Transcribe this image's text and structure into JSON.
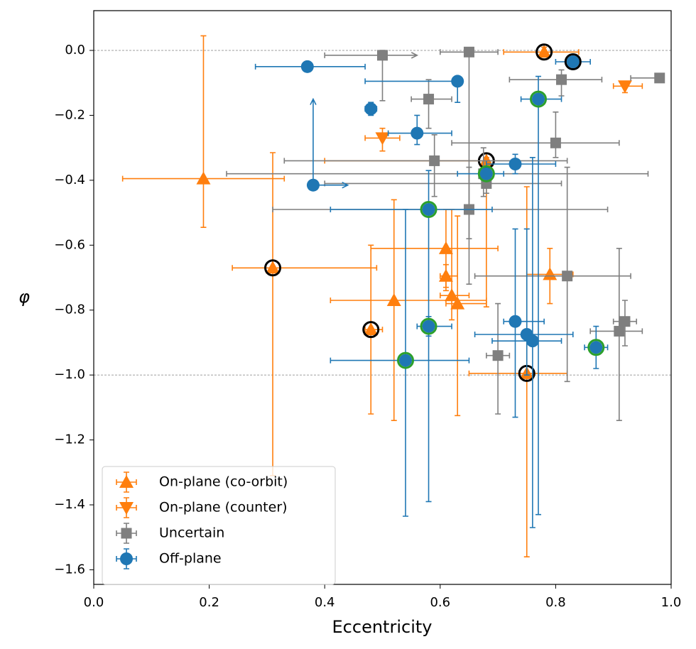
{
  "chart_data": {
    "type": "errorbar_scatter",
    "xlabel": "Eccentricity",
    "ylabel": "φ",
    "xlim": [
      0,
      1
    ],
    "ylim": [
      -1.645,
      0.1225
    ],
    "xticks": [
      {
        "value": 0,
        "label": "0.0"
      },
      {
        "value": 0.2,
        "label": "0.2"
      },
      {
        "value": 0.4,
        "label": "0.4"
      },
      {
        "value": 0.6,
        "label": "0.6"
      },
      {
        "value": 0.8,
        "label": "0.8"
      },
      {
        "value": 1,
        "label": "1.0"
      }
    ],
    "yticks": [
      {
        "value": 0,
        "label": "0.0"
      },
      {
        "value": -0.2,
        "label": "−0.2"
      },
      {
        "value": -0.4,
        "label": "−0.4"
      },
      {
        "value": -0.6,
        "label": "−0.6"
      },
      {
        "value": -0.8,
        "label": "−0.8"
      },
      {
        "value": -1,
        "label": "−1.0"
      },
      {
        "value": -1.2,
        "label": "−1.2"
      },
      {
        "value": -1.4,
        "label": "−1.4"
      },
      {
        "value": -1.6,
        "label": "−1.6"
      }
    ],
    "hlines": [
      0,
      -1
    ],
    "legend": "lower left",
    "series": [
      {
        "name": "On-plane (co-orbit)",
        "color": "#ff7f0e",
        "marker": "triangle-up",
        "x": [
          0.19,
          0.78,
          0.68,
          0.31,
          0.48,
          0.75,
          0.52,
          0.61,
          0.61,
          0.62,
          0.63,
          0.79
        ],
        "values": [
          -0.395,
          -0.005,
          -0.34,
          -0.67,
          -0.86,
          -0.995,
          -0.77,
          -0.61,
          -0.695,
          -0.755,
          -0.78,
          -0.69
        ],
        "x_low": [
          0.05,
          0.71,
          0.4,
          0.24,
          0.47,
          0.65,
          0.41,
          0.48,
          0.6,
          0.6,
          0.61,
          0.75
        ],
        "x_high": [
          0.33,
          0.84,
          0.68,
          0.49,
          0.5,
          0.82,
          0.68,
          0.7,
          0.63,
          0.65,
          0.68,
          0.83
        ],
        "y_high": [
          0.045,
          0.01,
          -0.33,
          -0.315,
          -0.6,
          -0.42,
          -0.46,
          -0.49,
          -0.66,
          -0.49,
          -0.51,
          -0.61
        ],
        "y_low": [
          -0.545,
          -0.02,
          -0.79,
          -1.31,
          -1.12,
          -1.56,
          -1.14,
          -0.74,
          -0.73,
          -0.83,
          -1.125,
          -0.78
        ],
        "edge_colors": [
          null,
          "#000000",
          "#000000",
          "#000000",
          "#000000",
          "#000000",
          null,
          null,
          null,
          null,
          null,
          null
        ],
        "x_arrow": [
          false,
          false,
          false,
          false,
          false,
          false,
          false,
          false,
          false,
          false,
          false,
          false
        ],
        "y_arrow": [
          false,
          false,
          false,
          false,
          false,
          false,
          false,
          false,
          false,
          false,
          false,
          false
        ]
      },
      {
        "name": "On-plane (counter)",
        "color": "#ff7f0e",
        "marker": "triangle-down",
        "x": [
          0.5,
          0.92
        ],
        "values": [
          -0.27,
          -0.11
        ],
        "x_low": [
          0.47,
          0.9
        ],
        "x_high": [
          0.53,
          0.95
        ],
        "y_high": [
          -0.24,
          -0.1
        ],
        "y_low": [
          -0.31,
          -0.13
        ],
        "edge_colors": [
          null,
          null
        ],
        "x_arrow": [
          false,
          false
        ],
        "y_arrow": [
          false,
          false
        ]
      },
      {
        "name": "Uncertain",
        "color": "#7f7f7f",
        "marker": "square",
        "x": [
          0.5,
          0.65,
          0.81,
          0.98,
          0.58,
          0.8,
          0.59,
          0.675,
          0.68,
          0.65,
          0.82,
          0.7,
          0.91,
          0.92
        ],
        "values": [
          -0.015,
          -0.005,
          -0.09,
          -0.085,
          -0.15,
          -0.285,
          -0.34,
          -0.38,
          -0.41,
          -0.49,
          -0.695,
          -0.94,
          -0.865,
          -0.835
        ],
        "x_low": [
          0.4,
          0.6,
          0.72,
          0.93,
          0.55,
          0.62,
          0.33,
          0.23,
          0.4,
          0.31,
          0.66,
          0.68,
          0.86,
          0.9
        ],
        "x_high": [
          0.56,
          0.7,
          0.88,
          0.98,
          0.62,
          0.91,
          0.82,
          0.96,
          0.81,
          0.89,
          0.93,
          0.72,
          0.95,
          0.94
        ],
        "y_high": [
          0.0,
          0.0,
          -0.06,
          -0.08,
          -0.09,
          -0.19,
          -0.26,
          -0.3,
          -0.37,
          -0.36,
          -0.36,
          -0.78,
          -0.61,
          -0.77
        ],
        "y_low": [
          -0.155,
          -0.72,
          -0.14,
          -0.09,
          -0.24,
          -0.33,
          -0.45,
          -0.45,
          -0.44,
          -0.58,
          -1.02,
          -1.12,
          -1.14,
          -0.91
        ],
        "edge_colors": [
          null,
          null,
          null,
          null,
          null,
          null,
          null,
          null,
          null,
          null,
          null,
          null,
          null,
          null
        ],
        "x_arrow": [
          true,
          false,
          false,
          false,
          false,
          false,
          false,
          false,
          false,
          false,
          false,
          false,
          false,
          false
        ],
        "y_arrow": [
          false,
          false,
          false,
          false,
          false,
          false,
          false,
          false,
          false,
          false,
          false,
          false,
          false,
          false
        ]
      },
      {
        "name": "Off-plane",
        "color": "#1f77b4",
        "marker": "circle",
        "x": [
          0.37,
          0.63,
          0.83,
          0.77,
          0.48,
          0.56,
          0.38,
          0.73,
          0.68,
          0.58,
          0.73,
          0.58,
          0.54,
          0.75,
          0.76,
          0.87
        ],
        "values": [
          -0.05,
          -0.095,
          -0.035,
          -0.15,
          -0.18,
          -0.255,
          -0.415,
          -0.35,
          -0.38,
          -0.49,
          -0.835,
          -0.85,
          -0.955,
          -0.875,
          -0.895,
          -0.915
        ],
        "x_low": [
          0.28,
          0.47,
          0.8,
          0.74,
          0.47,
          0.51,
          0.38,
          0.68,
          0.63,
          0.41,
          0.71,
          0.56,
          0.41,
          0.66,
          0.69,
          0.85
        ],
        "x_high": [
          0.47,
          0.63,
          0.86,
          0.81,
          0.49,
          0.62,
          0.44,
          0.8,
          0.71,
          0.69,
          0.78,
          0.62,
          0.65,
          0.83,
          0.81,
          0.89
        ],
        "y_high": [
          -0.05,
          -0.08,
          -0.03,
          -0.08,
          -0.16,
          -0.2,
          -0.15,
          -0.32,
          -0.37,
          -0.37,
          -0.55,
          -0.82,
          -0.49,
          -0.55,
          -0.33,
          -0.85
        ],
        "y_low": [
          -0.05,
          -0.16,
          -0.04,
          -1.43,
          -0.2,
          -0.29,
          -0.415,
          -0.38,
          -0.39,
          -1.39,
          -1.13,
          -0.88,
          -1.435,
          -1.0,
          -1.47,
          -0.98
        ],
        "edge_colors": [
          null,
          null,
          "#000000",
          "#2ca02c",
          null,
          null,
          null,
          null,
          "#2ca02c",
          "#2ca02c",
          null,
          "#2ca02c",
          "#2ca02c",
          null,
          null,
          "#2ca02c"
        ],
        "x_arrow": [
          false,
          false,
          false,
          false,
          false,
          false,
          true,
          false,
          false,
          false,
          false,
          false,
          false,
          false,
          false,
          false
        ],
        "y_arrow": [
          false,
          false,
          false,
          false,
          false,
          false,
          true,
          false,
          false,
          false,
          false,
          false,
          false,
          false,
          false,
          false
        ]
      }
    ]
  }
}
